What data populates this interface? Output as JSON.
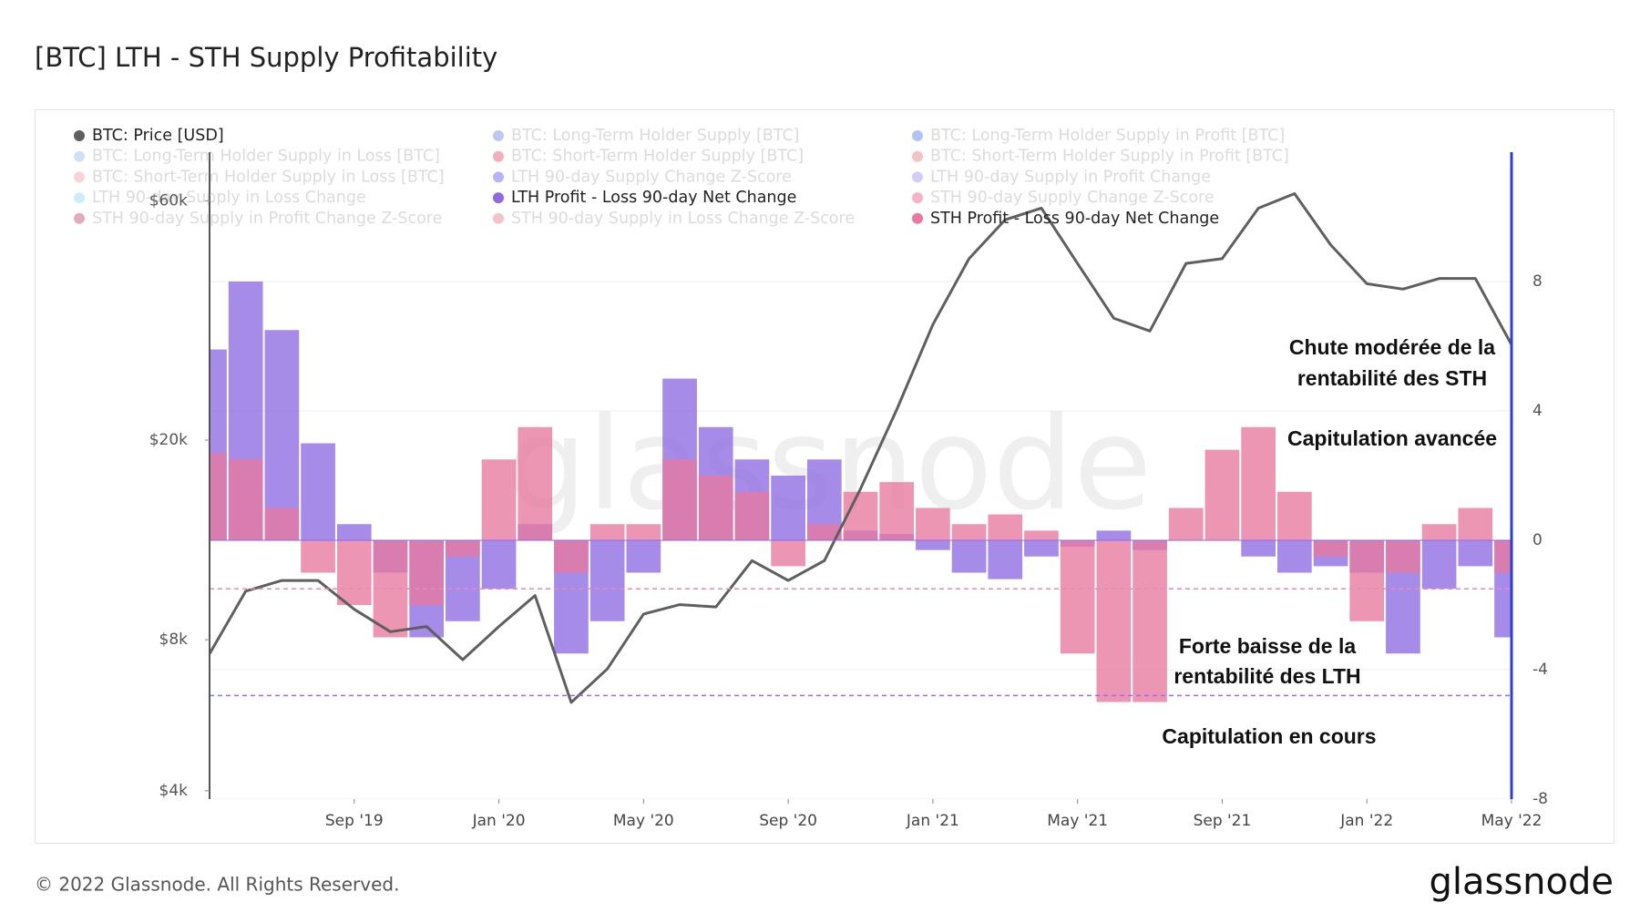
{
  "chart_data": {
    "type": "combo",
    "title": "[BTC] LTH - STH Supply Profitability",
    "watermark": "glassnode",
    "footer": "© 2022 Glassnode. All Rights Reserved.",
    "logo": "glassnode",
    "x": [
      "2019-05",
      "2019-06",
      "2019-07",
      "2019-08",
      "2019-09",
      "2019-10",
      "2019-11",
      "2019-12",
      "2020-01",
      "2020-02",
      "2020-03",
      "2020-04",
      "2020-05",
      "2020-06",
      "2020-07",
      "2020-08",
      "2020-09",
      "2020-10",
      "2020-11",
      "2020-12",
      "2021-01",
      "2021-02",
      "2021-03",
      "2021-04",
      "2021-05",
      "2021-06",
      "2021-07",
      "2021-08",
      "2021-09",
      "2021-10",
      "2021-11",
      "2021-12",
      "2022-01",
      "2022-02",
      "2022-03",
      "2022-04",
      "2022-05"
    ],
    "xlim": [
      "2019-05",
      "2022-05"
    ],
    "xticks": [
      {
        "value": "2019-09",
        "label": "Sep '19"
      },
      {
        "value": "2020-01",
        "label": "Jan '20"
      },
      {
        "value": "2020-05",
        "label": "May '20"
      },
      {
        "value": "2020-09",
        "label": "Sep '20"
      },
      {
        "value": "2021-01",
        "label": "Jan '21"
      },
      {
        "value": "2021-05",
        "label": "May '21"
      },
      {
        "value": "2021-09",
        "label": "Sep '21"
      },
      {
        "value": "2022-01",
        "label": "Jan '22"
      },
      {
        "value": "2022-05",
        "label": "May '22"
      }
    ],
    "ylim": [
      3850,
      75000
    ],
    "y_log": true,
    "yticks": [
      {
        "value": 4000,
        "label": "$4k"
      },
      {
        "value": 8000,
        "label": "$8k"
      },
      {
        "value": 20000,
        "label": "$20k"
      },
      {
        "value": 60000,
        "label": "$60k"
      }
    ],
    "y2lim": [
      -8,
      12
    ],
    "y2ticks": [
      -8,
      -4,
      0,
      4,
      8
    ],
    "grid": true,
    "reference_lines": [
      {
        "value": -1.5,
        "color": "#e88ab8"
      },
      {
        "value": -4.8,
        "color": "#9b6cf0"
      }
    ],
    "series": [
      {
        "name": "BTC: Price [USD]",
        "color": "#5f5f5f",
        "visible": true,
        "kind": "line",
        "axis": "y",
        "values": [
          7500,
          10000,
          10500,
          10500,
          9200,
          8300,
          8500,
          7300,
          8500,
          9800,
          6000,
          7000,
          9000,
          9400,
          9300,
          11500,
          10500,
          11500,
          16000,
          23000,
          34000,
          46000,
          55000,
          58000,
          45000,
          35000,
          33000,
          45000,
          46000,
          58000,
          62000,
          49000,
          41000,
          40000,
          42000,
          42000,
          31000
        ]
      },
      {
        "name": "BTC: Long-Term Holder Supply [BTC]",
        "color": "#4a63d8",
        "visible": false
      },
      {
        "name": "BTC: Long-Term Holder Supply in Profit [BTC]",
        "color": "#2451e0",
        "visible": false
      },
      {
        "name": "BTC: Long-Term Holder Supply in Loss [BTC]",
        "color": "#7aa7ea",
        "visible": false
      },
      {
        "name": "BTC: Short-Term Holder Supply [BTC]",
        "color": "#e0203a",
        "visible": false
      },
      {
        "name": "BTC: Short-Term Holder Supply in Profit [BTC]",
        "color": "#e05454",
        "visible": false
      },
      {
        "name": "BTC: Short-Term Holder Supply in Loss [BTC]",
        "color": "#ee7f99",
        "visible": false
      },
      {
        "name": "LTH 90-day Supply Change Z-Score",
        "color": "#2a2ee6",
        "visible": false
      },
      {
        "name": "LTH 90-day Supply in Profit Change",
        "color": "#7a6cf2",
        "visible": false
      },
      {
        "name": "LTH 90-day Supply in Loss Change",
        "color": "#6ccaf6",
        "visible": false
      },
      {
        "name": "LTH Profit - Loss 90-day Net Change",
        "color": "#8d6ae3",
        "visible": true,
        "kind": "bar",
        "axis": "y2",
        "values": [
          5.9,
          8.0,
          6.5,
          3.0,
          0.5,
          -1.0,
          -3.0,
          -2.5,
          -1.5,
          0.5,
          -3.5,
          -2.5,
          -1.0,
          5.0,
          3.5,
          2.5,
          2.0,
          2.5,
          0.3,
          0.2,
          -0.3,
          -1.0,
          -1.2,
          -0.5,
          -0.2,
          0.3,
          -0.3,
          0,
          0,
          -0.5,
          -1.0,
          -0.8,
          -1.0,
          -3.5,
          -1.5,
          -0.8,
          -3.0
        ]
      },
      {
        "name": "STH 90-day Supply Change Z-Score",
        "color": "#ea1c6a",
        "visible": false
      },
      {
        "name": "STH 90-day Supply in Profit Change Z-Score",
        "color": "#b0143f",
        "visible": false
      },
      {
        "name": "STH 90-day Supply in Loss Change Z-Score",
        "color": "#e2595a",
        "visible": false
      },
      {
        "name": "STH Profit - Loss 90-day Net Change",
        "color": "#e8799f",
        "visible": true,
        "kind": "bar",
        "axis": "y2",
        "values": [
          2.7,
          2.5,
          1.0,
          -1.0,
          -2.0,
          -3.0,
          -2.0,
          -0.5,
          2.5,
          3.5,
          -1.0,
          0.5,
          0.5,
          2.5,
          2.0,
          1.5,
          -0.8,
          0.5,
          1.5,
          1.8,
          1.0,
          0.5,
          0.8,
          0.3,
          -3.5,
          -5.0,
          -5.0,
          1.0,
          2.8,
          3.5,
          1.5,
          -0.5,
          -2.5,
          -1.0,
          0.5,
          1.0,
          -1.0
        ]
      }
    ],
    "annotations": [
      {
        "text": [
          "Chute modérée de la",
          "rentabilité des STH"
        ]
      },
      {
        "text": [
          "Capitulation avancée"
        ]
      },
      {
        "text": [
          "Forte baisse de la",
          "rentabilité des LTH"
        ]
      },
      {
        "text": [
          "Capitulation en cours"
        ]
      }
    ]
  }
}
